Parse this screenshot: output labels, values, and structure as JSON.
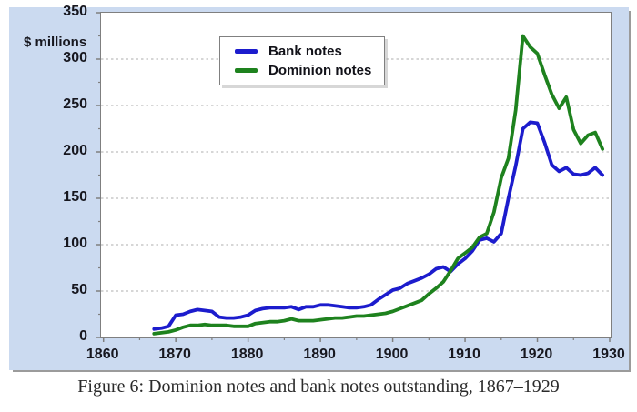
{
  "figure": {
    "caption": "Figure 6: Dominion notes and bank notes outstanding, 1867–1929",
    "y_axis_title": "$ millions"
  },
  "legend": {
    "items": [
      {
        "label": "Bank notes",
        "color": "#1c1ccd"
      },
      {
        "label": "Dominion notes",
        "color": "#1e821e"
      }
    ]
  },
  "colors": {
    "chart_background": "#cbdaf0",
    "plot_background": "#ffffff",
    "gridline": "#adadad",
    "axis_frame": "#7f7f7f",
    "tick": "#7f7f7f",
    "label_text": "#17171f"
  },
  "chart_data": {
    "type": "line",
    "title": "",
    "xlabel": "",
    "ylabel": "$ millions",
    "xlim": [
      1860,
      1930
    ],
    "ylim": [
      0,
      350
    ],
    "grid": "horizontal dashed at 50..300",
    "legend_position": "upper-left inside plot",
    "x_major_ticks": [
      1860,
      1870,
      1880,
      1890,
      1900,
      1910,
      1920,
      1930
    ],
    "x_minor_ticks": [
      1865,
      1875,
      1885,
      1895,
      1905,
      1915,
      1925
    ],
    "y_major_ticks": [
      0,
      50,
      100,
      150,
      200,
      250,
      300,
      350
    ],
    "y_minor_ticks": [
      25,
      75,
      125,
      175,
      225,
      275,
      325
    ],
    "start_year": 1867,
    "end_year": 1929,
    "series": [
      {
        "name": "Bank notes",
        "color": "#1c1ccd",
        "values": [
          9,
          10,
          12,
          24,
          25,
          28,
          30,
          29,
          28,
          22,
          21,
          21,
          22,
          24,
          29,
          31,
          32,
          32,
          32,
          33,
          30,
          33,
          33,
          35,
          35,
          34,
          33,
          32,
          32,
          33,
          35,
          41,
          46,
          51,
          53,
          58,
          61,
          64,
          68,
          74,
          76,
          71,
          79,
          85,
          93,
          105,
          107,
          103,
          112,
          150,
          185,
          225,
          232,
          231,
          210,
          186,
          179,
          183,
          176,
          175,
          177,
          183,
          175
        ]
      },
      {
        "name": "Dominion notes",
        "color": "#1e821e",
        "values": [
          4,
          5,
          6,
          8,
          11,
          13,
          13,
          14,
          13,
          13,
          13,
          12,
          12,
          12,
          15,
          16,
          17,
          17,
          18,
          20,
          18,
          18,
          18,
          19,
          20,
          21,
          21,
          22,
          23,
          23,
          24,
          25,
          26,
          28,
          31,
          34,
          37,
          40,
          47,
          53,
          60,
          72,
          85,
          91,
          97,
          108,
          112,
          135,
          172,
          193,
          245,
          325,
          313,
          306,
          283,
          262,
          247,
          259,
          224,
          209,
          218,
          221,
          203
        ]
      }
    ]
  }
}
